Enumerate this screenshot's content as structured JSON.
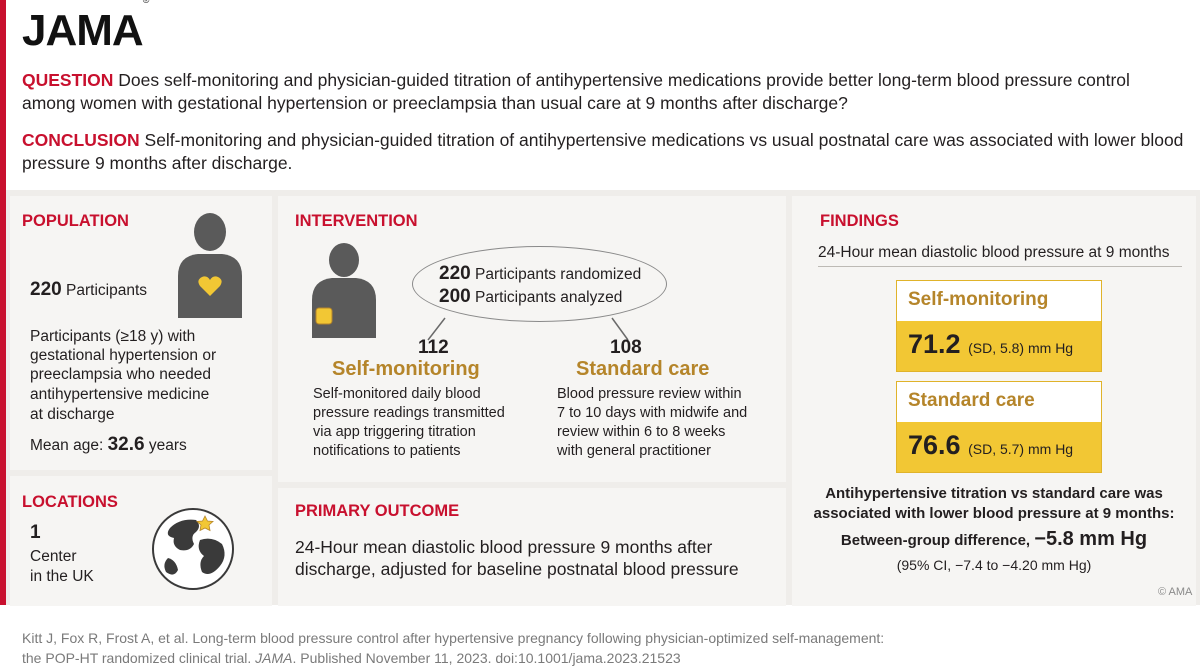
{
  "header": {
    "logo": "JAMA",
    "logo_mark": "®"
  },
  "question": {
    "label": "QUESTION",
    "text": "Does self-monitoring and physician-guided titration of antihypertensive medications provide better long-term blood pressure control among women with gestational hypertension or preeclampsia than usual care at 9 months after discharge?"
  },
  "conclusion": {
    "label": "CONCLUSION",
    "text": "Self-monitoring and physician-guided titration of antihypertensive medications vs usual postnatal care was associated with lower blood pressure 9 months after discharge."
  },
  "population": {
    "title": "POPULATION",
    "count": "220",
    "count_label": "Participants",
    "description_lines": [
      "Participants (≥18 y) with",
      "gestational hypertension or",
      "preeclampsia who needed",
      "antihypertensive medicine",
      "at discharge"
    ],
    "mean_age_label": "Mean age:",
    "mean_age_value": "32.6",
    "mean_age_unit": "years"
  },
  "locations": {
    "title": "LOCATIONS",
    "count": "1",
    "line1": "Center",
    "line2": "in the UK"
  },
  "intervention": {
    "title": "INTERVENTION",
    "randomized_count": "220",
    "randomized_label": "Participants randomized",
    "analyzed_count": "200",
    "analyzed_label": "Participants analyzed",
    "arms": [
      {
        "n": "112",
        "name": "Self-monitoring",
        "lines": [
          "Self-monitored daily blood",
          "pressure readings transmitted",
          "via app triggering titration",
          "notifications to patients"
        ]
      },
      {
        "n": "108",
        "name": "Standard care",
        "lines": [
          "Blood pressure review within",
          "7 to 10 days with midwife and",
          "review within 6 to 8 weeks",
          "with general practitioner"
        ]
      }
    ]
  },
  "primary_outcome": {
    "title": "PRIMARY OUTCOME",
    "lines": [
      "24-Hour mean diastolic blood pressure 9 months after",
      "discharge, adjusted for baseline postnatal blood pressure"
    ]
  },
  "findings": {
    "title": "FINDINGS",
    "subtitle": "24-Hour mean diastolic blood pressure at 9 months",
    "groups": [
      {
        "name": "Self-monitoring",
        "value": "71.2",
        "detail": "(SD, 5.8) mm Hg"
      },
      {
        "name": "Standard care",
        "value": "76.6",
        "detail": "(SD, 5.7) mm Hg"
      }
    ],
    "summary_lines": [
      "Antihypertensive titration vs standard care was",
      "associated with lower blood pressure at 9 months:"
    ],
    "diff_label": "Between-group difference,",
    "diff_value": "−5.8 mm Hg",
    "ci": "(95% CI, −7.4 to −4.20 mm Hg)",
    "copyright": "© AMA"
  },
  "footer": {
    "citation_line1": "Kitt J, Fox R, Frost A, et al. Long-term blood pressure control after hypertensive pregnancy following physician-optimized self-management:",
    "citation_pre": "the POP-HT randomized clinical trial.",
    "journal": "JAMA",
    "citation_post": ". Published November 11, 2023. doi:10.1001/jama.2023.21523"
  },
  "colors": {
    "accent_red": "#c8102e",
    "gold": "#b5852a",
    "yellow": "#f2c734",
    "band": "#efedea"
  }
}
